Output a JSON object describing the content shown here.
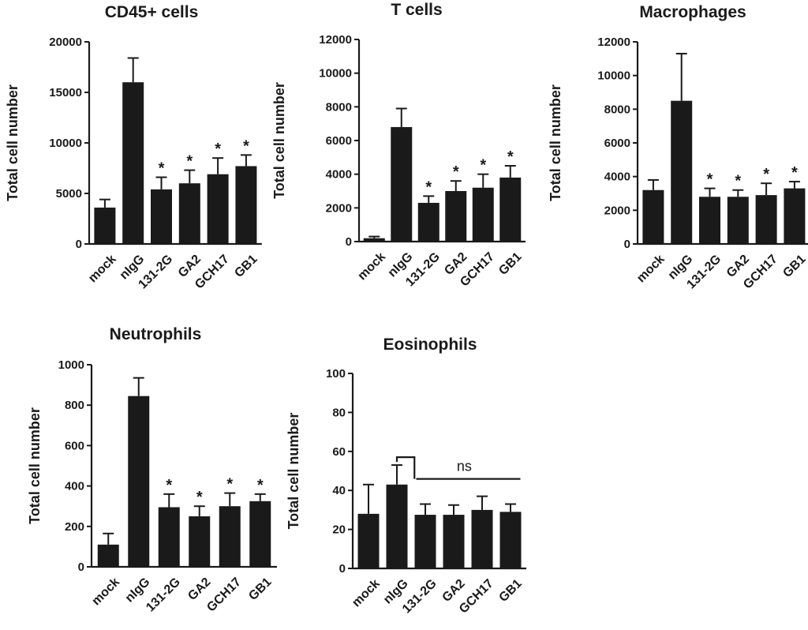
{
  "chart_data": [
    {
      "type": "bar",
      "title": "CD45+ cells",
      "ylabel": "Total cell number",
      "xlabel": "",
      "ylim": [
        0,
        20000
      ],
      "yticks": [
        0,
        5000,
        10000,
        15000,
        20000
      ],
      "categories": [
        "mock",
        "nIgG",
        "131-2G",
        "GA2",
        "GCH17",
        "GB1"
      ],
      "values": [
        3600,
        16000,
        5400,
        6000,
        6900,
        7700
      ],
      "errors": [
        800,
        2400,
        1200,
        1300,
        1600,
        1100
      ],
      "significance": [
        "",
        "",
        "*",
        "*",
        "*",
        "*"
      ]
    },
    {
      "type": "bar",
      "title": "T cells",
      "ylabel": "Total cell number",
      "xlabel": "",
      "ylim": [
        0,
        12000
      ],
      "yticks": [
        0,
        2000,
        4000,
        6000,
        8000,
        10000,
        12000
      ],
      "categories": [
        "mock",
        "nIgG",
        "131-2G",
        "GA2",
        "GCH17",
        "GB1"
      ],
      "values": [
        200,
        6800,
        2300,
        3000,
        3200,
        3800
      ],
      "errors": [
        100,
        1100,
        400,
        600,
        800,
        700
      ],
      "significance": [
        "",
        "",
        "*",
        "*",
        "*",
        "*"
      ]
    },
    {
      "type": "bar",
      "title": "Macrophages",
      "ylabel": "Total cell number",
      "xlabel": "",
      "ylim": [
        0,
        12000
      ],
      "yticks": [
        0,
        2000,
        4000,
        6000,
        8000,
        10000,
        12000
      ],
      "categories": [
        "mock",
        "nIgG",
        "131-2G",
        "GA2",
        "GCH17",
        "GB1"
      ],
      "values": [
        3200,
        8500,
        2800,
        2800,
        2900,
        3300
      ],
      "errors": [
        600,
        2800,
        500,
        400,
        700,
        400
      ],
      "significance": [
        "",
        "",
        "*",
        "*",
        "*",
        "*"
      ]
    },
    {
      "type": "bar",
      "title": "Neutrophils",
      "ylabel": "Total cell number",
      "xlabel": "",
      "ylim": [
        0,
        1000
      ],
      "yticks": [
        0,
        200,
        400,
        600,
        800,
        1000
      ],
      "categories": [
        "mock",
        "nIgG",
        "131-2G",
        "GA2",
        "GCH17",
        "GB1"
      ],
      "values": [
        110,
        845,
        295,
        250,
        300,
        325
      ],
      "errors": [
        55,
        90,
        65,
        50,
        65,
        35
      ],
      "significance": [
        "",
        "",
        "*",
        "*",
        "*",
        "*"
      ]
    },
    {
      "type": "bar",
      "title": "Eosinophils",
      "ylabel": "Total cell number",
      "xlabel": "",
      "ylim": [
        0,
        100
      ],
      "yticks": [
        0,
        20,
        40,
        60,
        80,
        100
      ],
      "categories": [
        "mock",
        "nIgG",
        "131-2G",
        "GA2",
        "GCH17",
        "GB1"
      ],
      "values": [
        28,
        43,
        27.5,
        27.5,
        30,
        29
      ],
      "errors": [
        15,
        10,
        5.5,
        5,
        7,
        4
      ],
      "significance": [
        "",
        "",
        "",
        "",
        "",
        ""
      ],
      "comparison": {
        "label": "ns",
        "from": "nIgG",
        "to": [
          "131-2G",
          "GA2",
          "GCH17",
          "GB1"
        ]
      }
    }
  ]
}
